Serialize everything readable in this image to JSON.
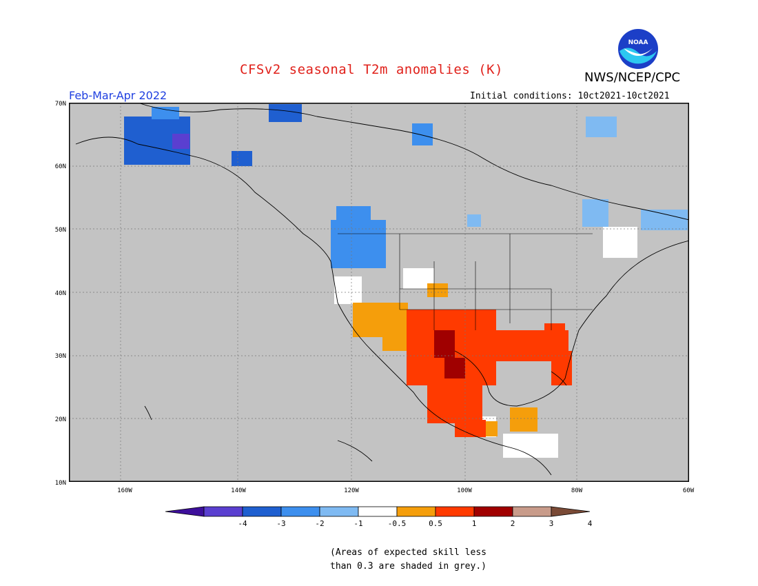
{
  "header": {
    "title": "CFSv2 seasonal T2m anomalies (K)",
    "agency": "NWS/NCEP/CPC",
    "season": "Feb-Mar-Apr 2022",
    "initial_conditions": "Initial conditions: 10ct2021-10ct2021",
    "logo_text": "NOAA"
  },
  "map": {
    "lat_labels": [
      "70N",
      "60N",
      "50N",
      "40N",
      "30N",
      "20N",
      "10N"
    ],
    "lon_labels": [
      "160W",
      "140W",
      "120W",
      "100W",
      "80W",
      "60W"
    ]
  },
  "colorbar": {
    "tick_labels": [
      "-4",
      "-3",
      "-2",
      "-1",
      "-0.5",
      "0.5",
      "1",
      "2",
      "3",
      "4"
    ],
    "colors": [
      "#3d0f9b",
      "#5a3fd0",
      "#1f5fd0",
      "#3d8fee",
      "#7fbaf2",
      "#ffffff",
      "#f59e0b",
      "#ff3a00",
      "#a00000",
      "#c89b8a",
      "#7a4a36"
    ]
  },
  "footnote": {
    "line1": "(Areas of expected skill less",
    "line2": "than 0.3 are shaded in grey.)"
  }
}
